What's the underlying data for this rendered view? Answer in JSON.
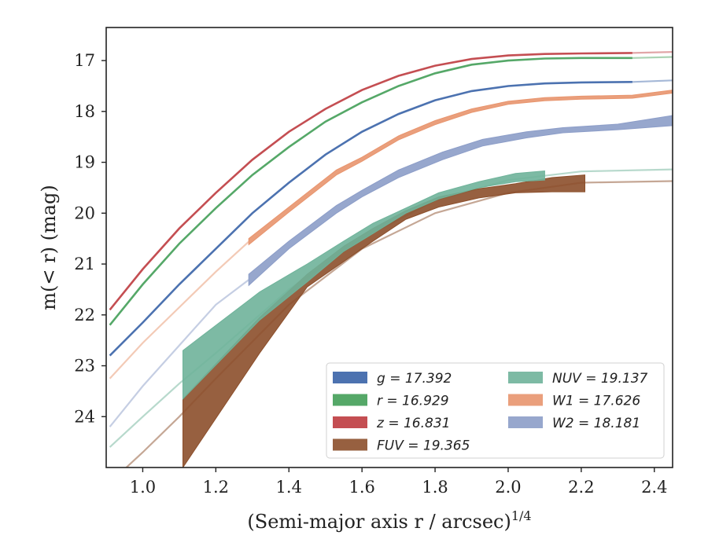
{
  "chart_data": {
    "type": "line",
    "xlabel": "(Semi-major axis r / arcsec)",
    "xlabel_superscript": "1/4",
    "ylabel": "m(< r) (mag)",
    "xlim": [
      0.9,
      2.45
    ],
    "ylim": [
      25.0,
      16.35
    ],
    "y_inverted": true,
    "x_ticks": [
      "1.0",
      "1.2",
      "1.4",
      "1.6",
      "1.8",
      "2.0",
      "2.2",
      "2.4"
    ],
    "y_ticks": [
      "17",
      "18",
      "19",
      "20",
      "21",
      "22",
      "23",
      "24"
    ],
    "grid": false,
    "legend_placement": "lower-right",
    "legend_columns": 2,
    "series": [
      {
        "name": "g",
        "legend_label": "g = 17.392",
        "color": "#4c72b0",
        "kind": "line",
        "x": [
          0.91,
          1.0,
          1.1,
          1.2,
          1.3,
          1.4,
          1.5,
          1.6,
          1.7,
          1.8,
          1.9,
          2.0,
          2.1,
          2.2,
          2.34
        ],
        "y": [
          22.8,
          22.15,
          21.4,
          20.7,
          20.0,
          19.4,
          18.85,
          18.4,
          18.05,
          17.78,
          17.6,
          17.5,
          17.45,
          17.43,
          17.42
        ],
        "extrapolated_x": [
          2.34,
          2.45
        ],
        "extrapolated_y": [
          17.42,
          17.39
        ]
      },
      {
        "name": "r",
        "legend_label": "r = 16.929",
        "color": "#55a868",
        "kind": "line",
        "x": [
          0.91,
          1.0,
          1.1,
          1.2,
          1.3,
          1.4,
          1.5,
          1.6,
          1.7,
          1.8,
          1.9,
          2.0,
          2.1,
          2.2,
          2.34
        ],
        "y": [
          22.2,
          21.4,
          20.6,
          19.9,
          19.25,
          18.7,
          18.2,
          17.82,
          17.5,
          17.25,
          17.08,
          17.0,
          16.96,
          16.95,
          16.95
        ],
        "extrapolated_x": [
          2.34,
          2.45
        ],
        "extrapolated_y": [
          16.95,
          16.93
        ]
      },
      {
        "name": "z",
        "legend_label": "z = 16.831",
        "color": "#c44e52",
        "kind": "line",
        "x": [
          0.91,
          1.0,
          1.1,
          1.2,
          1.3,
          1.4,
          1.5,
          1.6,
          1.7,
          1.8,
          1.9,
          2.0,
          2.1,
          2.2,
          2.34
        ],
        "y": [
          21.9,
          21.1,
          20.3,
          19.6,
          18.95,
          18.4,
          17.95,
          17.58,
          17.3,
          17.1,
          16.97,
          16.9,
          16.87,
          16.86,
          16.85
        ],
        "extrapolated_x": [
          2.34,
          2.45
        ],
        "extrapolated_y": [
          16.85,
          16.83
        ]
      },
      {
        "name": "FUV",
        "legend_label": "FUV = 19.365",
        "color": "#8c4f2b",
        "kind": "band",
        "x": [
          1.11,
          1.32,
          1.45,
          1.55,
          1.63,
          1.72,
          1.81,
          1.92,
          2.02,
          2.12,
          2.21
        ],
        "y_upper": [
          23.65,
          22.05,
          21.2,
          20.65,
          20.3,
          19.95,
          19.68,
          19.52,
          19.42,
          19.3,
          19.25
        ],
        "y_lower": [
          25.0,
          22.75,
          21.45,
          20.95,
          20.55,
          20.12,
          19.88,
          19.7,
          19.6,
          19.58,
          19.58
        ],
        "extrapolated_x": [
          0.91,
          1.0,
          1.1,
          1.2,
          1.4,
          1.6,
          1.8,
          2.0,
          2.2,
          2.45
        ],
        "extrapolated_y": [
          25.3,
          24.7,
          24.0,
          23.25,
          21.8,
          20.7,
          20.0,
          19.6,
          19.4,
          19.37
        ]
      },
      {
        "name": "NUV",
        "legend_label": "NUV = 19.137",
        "color": "#6fb39a",
        "kind": "band",
        "x": [
          1.11,
          1.32,
          1.45,
          1.55,
          1.63,
          1.72,
          1.81,
          1.92,
          2.02,
          2.1
        ],
        "y_upper": [
          22.7,
          21.55,
          21.0,
          20.55,
          20.2,
          19.9,
          19.6,
          19.38,
          19.22,
          19.17
        ],
        "y_lower": [
          23.65,
          22.1,
          21.35,
          20.75,
          20.4,
          20.0,
          19.72,
          19.5,
          19.38,
          19.35
        ],
        "extrapolated_x": [
          0.91,
          1.0,
          1.1,
          1.2,
          1.4,
          1.6,
          1.8,
          2.0,
          2.2,
          2.45
        ],
        "extrapolated_y": [
          24.6,
          24.0,
          23.35,
          22.75,
          21.5,
          20.5,
          19.75,
          19.35,
          19.18,
          19.14
        ]
      },
      {
        "name": "W1",
        "legend_label": "W1 = 17.626",
        "color": "#e8956e",
        "kind": "band",
        "x": [
          1.29,
          1.4,
          1.53,
          1.6,
          1.7,
          1.8,
          1.9,
          2.0,
          2.1,
          2.2,
          2.34,
          2.45
        ],
        "y_upper": [
          20.5,
          19.88,
          19.15,
          18.9,
          18.48,
          18.18,
          17.95,
          17.8,
          17.73,
          17.7,
          17.68,
          17.58
        ],
        "y_lower": [
          20.62,
          19.98,
          19.25,
          18.98,
          18.56,
          18.26,
          18.02,
          17.86,
          17.79,
          17.76,
          17.74,
          17.64
        ],
        "extrapolated_x": [
          0.91,
          1.0,
          1.1,
          1.2,
          1.29
        ],
        "extrapolated_y": [
          23.25,
          22.55,
          21.85,
          21.15,
          20.56
        ]
      },
      {
        "name": "W2",
        "legend_label": "W2 = 18.181",
        "color": "#8c9dc8",
        "kind": "band",
        "x": [
          1.29,
          1.4,
          1.53,
          1.6,
          1.7,
          1.82,
          1.93,
          2.05,
          2.15,
          2.3,
          2.45
        ],
        "y_upper": [
          21.2,
          20.55,
          19.85,
          19.55,
          19.15,
          18.8,
          18.55,
          18.4,
          18.32,
          18.25,
          18.08
        ],
        "y_lower": [
          21.42,
          20.7,
          20.0,
          19.68,
          19.3,
          18.95,
          18.68,
          18.52,
          18.42,
          18.36,
          18.28
        ],
        "extrapolated_x": [
          0.91,
          1.0,
          1.1,
          1.2,
          1.29
        ],
        "extrapolated_y": [
          24.2,
          23.4,
          22.6,
          21.8,
          21.31
        ]
      }
    ]
  }
}
